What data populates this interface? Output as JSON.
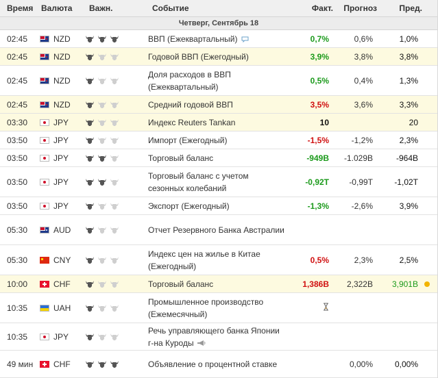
{
  "header": {
    "time": "Время",
    "currency": "Валюта",
    "importance": "Важн.",
    "event": "Событие",
    "actual": "Факт.",
    "forecast": "Прогноз",
    "previous": "Пред."
  },
  "date_label": "Четверг, Сентябрь 18",
  "colors": {
    "positive": "#1b9a1b",
    "negative": "#d01010",
    "highlight_row": "#fdfae0",
    "bull_on": "#555555",
    "bull_off": "#cfcfcf",
    "alert_dot": "#f2b400"
  },
  "rows": [
    {
      "time": "02:45",
      "currency": "NZD",
      "flag": "nz",
      "importance": 3,
      "event": "ВВП (Ежеквартальный)",
      "actual": "0,7%",
      "actual_state": "pos",
      "forecast": "0,6%",
      "previous": "1,0%",
      "previous_state": "neu",
      "highlight": false,
      "icon": "speech-bubble-icon"
    },
    {
      "time": "02:45",
      "currency": "NZD",
      "flag": "nz",
      "importance": 1,
      "event": "Годовой ВВП (Ежегодный)",
      "actual": "3,9%",
      "actual_state": "pos",
      "forecast": "3,8%",
      "previous": "3,8%",
      "previous_state": "neu",
      "highlight": true
    },
    {
      "time": "02:45",
      "currency": "NZD",
      "flag": "nz",
      "importance": 1,
      "event": "Доля расходов в ВВП (Ежеквартальный)",
      "actual": "0,5%",
      "actual_state": "pos",
      "forecast": "0,4%",
      "previous": "1,3%",
      "previous_state": "neu",
      "highlight": false
    },
    {
      "time": "02:45",
      "currency": "NZD",
      "flag": "nz",
      "importance": 1,
      "event": "Средний годовой ВВП",
      "actual": "3,5%",
      "actual_state": "neg",
      "forecast": "3,6%",
      "previous": "3,3%",
      "previous_state": "neu",
      "highlight": true
    },
    {
      "time": "03:30",
      "currency": "JPY",
      "flag": "jp",
      "importance": 1,
      "event": "Индекс Reuters Tankan",
      "actual": "10",
      "actual_state": "neu",
      "forecast": "",
      "previous": "20",
      "previous_state": "neu",
      "highlight": true
    },
    {
      "time": "03:50",
      "currency": "JPY",
      "flag": "jp",
      "importance": 1,
      "event": "Импорт (Ежегодный)",
      "actual": "-1,5%",
      "actual_state": "neg",
      "forecast": "-1,2%",
      "previous": "2,3%",
      "previous_state": "neu",
      "highlight": false
    },
    {
      "time": "03:50",
      "currency": "JPY",
      "flag": "jp",
      "importance": 2,
      "event": "Торговый баланс",
      "actual": "-949B",
      "actual_state": "pos",
      "forecast": "-1.029B",
      "previous": "-964B",
      "previous_state": "neu",
      "highlight": false
    },
    {
      "time": "03:50",
      "currency": "JPY",
      "flag": "jp",
      "importance": 2,
      "event": "Торговый баланс с учетом сезонных колебаний",
      "actual": "-0,92T",
      "actual_state": "pos",
      "forecast": "-0,99T",
      "previous": "-1,02T",
      "previous_state": "neu",
      "highlight": false
    },
    {
      "time": "03:50",
      "currency": "JPY",
      "flag": "jp",
      "importance": 1,
      "event": "Экспорт (Ежегодный)",
      "actual": "-1,3%",
      "actual_state": "pos",
      "forecast": "-2,6%",
      "previous": "3,9%",
      "previous_state": "neu",
      "highlight": false
    },
    {
      "time": "05:30",
      "currency": "AUD",
      "flag": "au",
      "importance": 1,
      "event": "Отчет Резервного Банка Австралии",
      "actual": "",
      "actual_state": "neu",
      "forecast": "",
      "previous": "",
      "previous_state": "neu",
      "highlight": false
    },
    {
      "time": "05:30",
      "currency": "CNY",
      "flag": "cn",
      "importance": 1,
      "event": "Индекс цен на жилье в Китае (Ежегодный)",
      "actual": "0,5%",
      "actual_state": "neg",
      "forecast": "2,3%",
      "previous": "2,5%",
      "previous_state": "neu",
      "highlight": false
    },
    {
      "time": "10:00",
      "currency": "CHF",
      "flag": "ch",
      "importance": 1,
      "event": "Торговый баланс",
      "actual": "1,386B",
      "actual_state": "neg",
      "forecast": "2,322B",
      "previous": "3,901B",
      "previous_state": "pos",
      "highlight": true,
      "icon": "alert-dot-icon"
    },
    {
      "time": "10:35",
      "currency": "UAH",
      "flag": "ua",
      "importance": 1,
      "event": "Промышленное производство (Ежемесячный)",
      "actual": "",
      "actual_state": "neu",
      "forecast": "",
      "previous": "",
      "previous_state": "neu",
      "highlight": false,
      "icon": "hourglass-icon"
    },
    {
      "time": "10:35",
      "currency": "JPY",
      "flag": "jp",
      "importance": 1,
      "event": "Речь управляющего банка Японии г-на Куроды",
      "actual": "",
      "actual_state": "neu",
      "forecast": "",
      "previous": "",
      "previous_state": "neu",
      "highlight": false,
      "icon": "megaphone-icon"
    },
    {
      "time": "49 мин",
      "currency": "CHF",
      "flag": "ch",
      "importance": 3,
      "event": "Объявление о процентной ставке",
      "actual": "",
      "actual_state": "neu",
      "forecast": "0,00%",
      "previous": "0,00%",
      "previous_state": "neu",
      "highlight": false
    }
  ]
}
